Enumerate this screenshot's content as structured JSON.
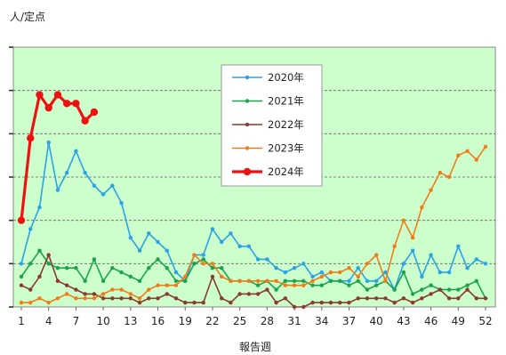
{
  "chart_data": {
    "type": "line",
    "title": "",
    "ylabel": "人/定点",
    "xlabel": "報告週",
    "xlim": [
      1,
      52
    ],
    "xticks": [
      1,
      4,
      7,
      10,
      13,
      16,
      19,
      22,
      25,
      28,
      31,
      34,
      37,
      40,
      43,
      46,
      49,
      52
    ],
    "ylim": [
      0,
      60
    ],
    "y_tick_labels_visible": false,
    "grid": "horizontal",
    "plot_background": "#ccffcc",
    "legend_position": "top-center",
    "series": [
      {
        "name": "2020年",
        "color": "#29a3e6",
        "line_width": 1.6,
        "marker_size": 2.2,
        "values": [
          10,
          18,
          23,
          38,
          27,
          31,
          36,
          31,
          28,
          26,
          28,
          24,
          16,
          13,
          17,
          15,
          13,
          8,
          6,
          12,
          12,
          18,
          15,
          17,
          14,
          14,
          11,
          11,
          9,
          8,
          9,
          10,
          7,
          8,
          6,
          6,
          6,
          9,
          6,
          6,
          8,
          4,
          10,
          13,
          7,
          12,
          8,
          8,
          14,
          9,
          11,
          10
        ]
      },
      {
        "name": "2021年",
        "color": "#1aa34c",
        "line_width": 1.6,
        "marker_size": 2.2,
        "values": [
          7,
          10,
          13,
          10,
          9,
          9,
          9,
          6,
          11,
          6,
          9,
          8,
          7,
          6,
          9,
          11,
          9,
          6,
          6,
          10,
          11,
          9,
          9,
          6,
          6,
          6,
          5,
          6,
          4,
          6,
          6,
          6,
          5,
          5,
          6,
          6,
          5,
          6,
          4,
          5,
          6,
          4,
          8,
          3,
          4,
          5,
          4,
          4,
          4,
          5,
          6,
          2
        ]
      },
      {
        "name": "2022年",
        "color": "#8b3a2e",
        "line_width": 1.6,
        "marker_size": 2.2,
        "values": [
          5,
          4,
          7,
          12,
          6,
          5,
          4,
          3,
          3,
          2,
          2,
          2,
          2,
          1,
          2,
          2,
          3,
          2,
          1,
          1,
          1,
          7,
          2,
          1,
          3,
          3,
          3,
          4,
          1,
          2,
          0,
          0,
          1,
          1,
          1,
          1,
          1,
          2,
          2,
          2,
          2,
          1,
          2,
          1,
          2,
          3,
          4,
          2,
          2,
          4,
          2,
          2
        ]
      },
      {
        "name": "2023年",
        "color": "#ef7d18",
        "line_width": 1.6,
        "marker_size": 2.2,
        "values": [
          1,
          1,
          2,
          1,
          2,
          3,
          2,
          2,
          2,
          3,
          4,
          4,
          3,
          2,
          4,
          5,
          5,
          5,
          7,
          12,
          10,
          10,
          7,
          6,
          6,
          6,
          6,
          6,
          6,
          5,
          5,
          5,
          6,
          7,
          8,
          8,
          9,
          7,
          10,
          12,
          6,
          14,
          20,
          16,
          23,
          27,
          31,
          30,
          35,
          36,
          34,
          37
        ]
      },
      {
        "name": "2024年",
        "color": "#ee1111",
        "line_width": 3.2,
        "marker_size": 4.2,
        "values": [
          20,
          39,
          49,
          46,
          49,
          47,
          47,
          43,
          45
        ]
      }
    ]
  }
}
